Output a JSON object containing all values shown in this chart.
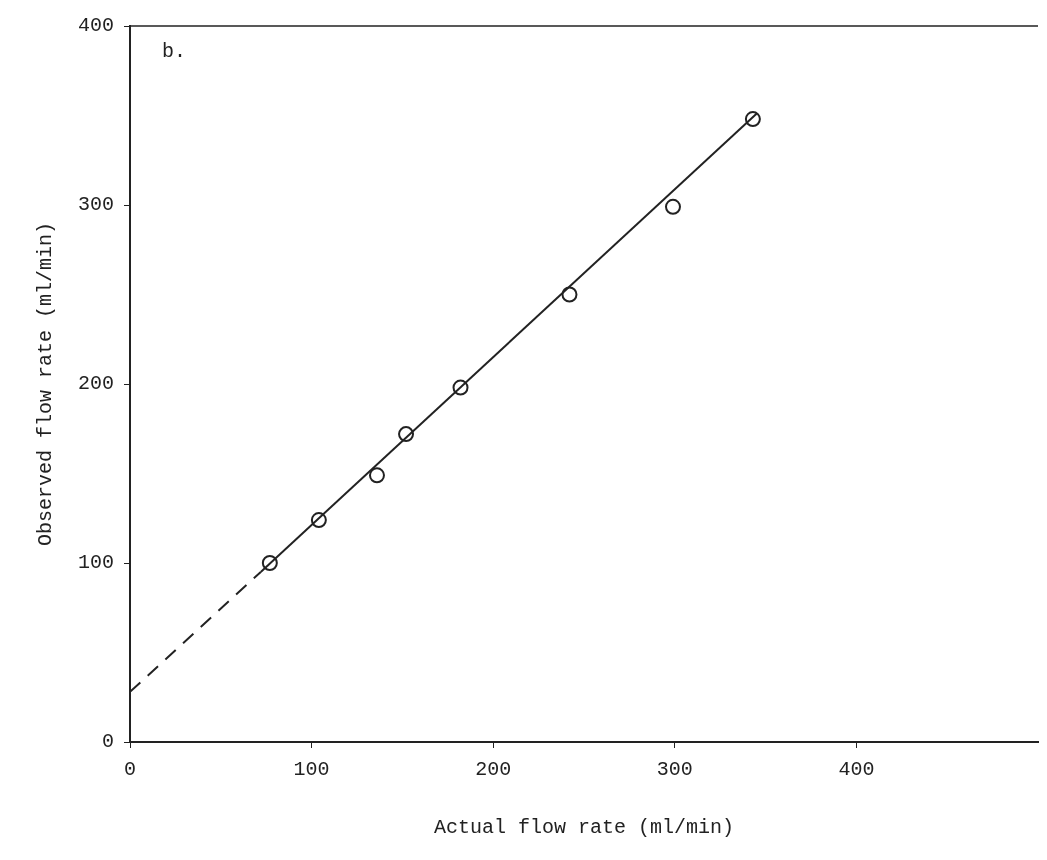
{
  "chart_data": {
    "type": "scatter",
    "xlabel": "Actual flow rate (ml/min)",
    "ylabel": "Observed flow rate (ml/min)",
    "annotations": [
      "b."
    ],
    "xlim": [
      0,
      500
    ],
    "xticks": [
      0,
      100,
      200,
      300,
      400
    ],
    "ylim": [
      0,
      400
    ],
    "yticks": [
      0,
      100,
      200,
      300,
      400
    ],
    "grid": false,
    "legend": false,
    "series": [
      {
        "type": "scatter",
        "color": "#222222",
        "marker": "circle",
        "x": [
          77,
          104,
          136,
          152,
          182,
          242,
          299,
          343
        ],
        "values": [
          100,
          124,
          149,
          172,
          198,
          250,
          299,
          348
        ]
      },
      {
        "type": "line",
        "color": "#222222",
        "marker": "none",
        "line_style": "solid",
        "x": [
          72,
          345
        ],
        "values": [
          95,
          351
        ]
      },
      {
        "type": "line",
        "color": "#222222",
        "marker": "none",
        "line_style": "dashed",
        "x": [
          0,
          72
        ],
        "values": [
          28,
          95
        ]
      }
    ]
  }
}
